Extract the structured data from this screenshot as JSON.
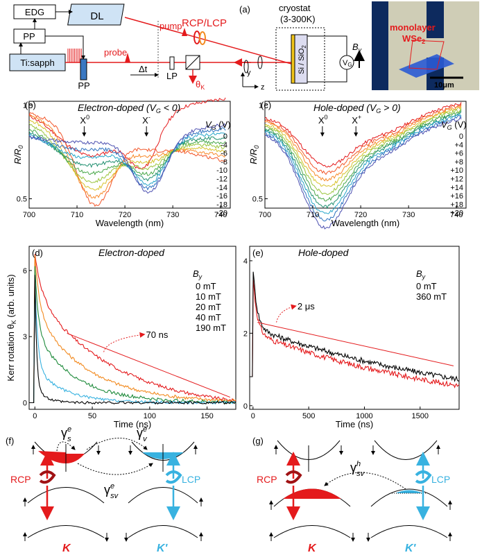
{
  "panel_a": {
    "label": "(a)",
    "boxes": {
      "edg": "EDG",
      "dl": "DL",
      "pp": "PP",
      "tisapph": "Ti:sapph"
    },
    "pp_bottom": "PP",
    "pump": "pump",
    "probe": "probe",
    "rcp_lcp": "RCP/LCP",
    "delta_t": "Δt",
    "lp": "LP",
    "theta_k": "θ",
    "theta_k_sub": "K",
    "y": "y",
    "z": "z",
    "cryostat": "cryostat",
    "cryostat_range": "(3-300K)",
    "sample": "Si / SiO",
    "sample_sub": "2",
    "vg": "V",
    "vg_sub": "G",
    "by": "B",
    "by_sub": "y",
    "photo_label": "monolayer",
    "photo_label2": "WSe",
    "photo_label2_sub": "2",
    "scale": "10μm"
  },
  "colors": {
    "red": "#e41a1c",
    "orange": "#f28a1f",
    "green": "#1d8a3a",
    "cyan": "#38b2e0",
    "black": "#000000",
    "gate": [
      "#e41a1c",
      "#f2572a",
      "#f88b2c",
      "#d7c22b",
      "#9bc53d",
      "#4aa84a",
      "#1f8f6f",
      "#26a6c9",
      "#2f73c0",
      "#4b4fb0",
      "#5b3d9c"
    ]
  },
  "panel_b": {
    "label": "(b)",
    "title": "Electron-doped (V",
    "title_sub": "G",
    "title_end": " < 0)",
    "ylabel": "R/R",
    "ylabel_sub": "0",
    "xlabel": "Wavelength (nm)",
    "x0": "X",
    "x0_sup": "0",
    "xm": "X",
    "xm_sup": "-",
    "vg_head": "V",
    "vg_head_sub": "G",
    "vg_unit": " (V)",
    "legend": [
      "0",
      "-4",
      "-6",
      "-8",
      "-10",
      "-12",
      "-14",
      "-16",
      "-18",
      "-20"
    ],
    "xticks": [
      "700",
      "710",
      "720",
      "730",
      "740"
    ],
    "yticks": [
      "1",
      "0.5"
    ]
  },
  "panel_c": {
    "label": "(c)",
    "title": "Hole-doped (V",
    "title_sub": "G",
    "title_end": " > 0)",
    "ylabel": "R/R",
    "ylabel_sub": "0",
    "xlabel": "Wavelength (nm)",
    "x0": "X",
    "x0_sup": "0",
    "xp": "X",
    "xp_sup": "+",
    "vg_head": "V",
    "vg_head_sub": "G",
    "vg_unit": " (V)",
    "legend": [
      "0",
      "+4",
      "+6",
      "+8",
      "+10",
      "+12",
      "+14",
      "+16",
      "+18",
      "+20"
    ],
    "xticks": [
      "700",
      "710",
      "720",
      "730",
      "740"
    ],
    "yticks": [
      "1",
      "0.5"
    ]
  },
  "panel_d": {
    "label": "(d)",
    "title": "Electron-doped",
    "ylabel": "Kerr rotation θ",
    "ylabel_sub": "K",
    "ylabel_end": " (arb. units)",
    "xlabel": "Time (ns)",
    "by_head": "B",
    "by_head_sub": "y",
    "legend": [
      "0 mT",
      "10 mT",
      "20 mT",
      "40 mT",
      "190 mT"
    ],
    "annotation": "70 ns",
    "xticks": [
      "0",
      "50",
      "100",
      "150"
    ],
    "yticks": [
      "0",
      "3",
      "6"
    ]
  },
  "panel_e": {
    "label": "(e)",
    "title": "Hole-doped",
    "xlabel": "Time (ns)",
    "by_head": "B",
    "by_head_sub": "y",
    "legend": [
      "0 mT",
      "360 mT"
    ],
    "annotation": "2 μs",
    "xticks": [
      "0",
      "500",
      "1000",
      "1500"
    ],
    "yticks": [
      "0",
      "2",
      "4"
    ]
  },
  "panel_f": {
    "label": "(f)",
    "gs": "γ",
    "gs_sub": "s",
    "gs_sup": "e",
    "gv": "γ",
    "gv_sub": "v",
    "gv_sup": "e",
    "gsv": "γ",
    "gsv_sub": "sv",
    "gsv_sup": "e",
    "rcp": "RCP",
    "lcp": "LCP",
    "k": "K",
    "kp": "K'"
  },
  "panel_g": {
    "label": "(g)",
    "gsv": "γ",
    "gsv_sub": "sv",
    "gsv_sup": "h",
    "rcp": "RCP",
    "lcp": "LCP",
    "k": "K",
    "kp": "K'"
  }
}
